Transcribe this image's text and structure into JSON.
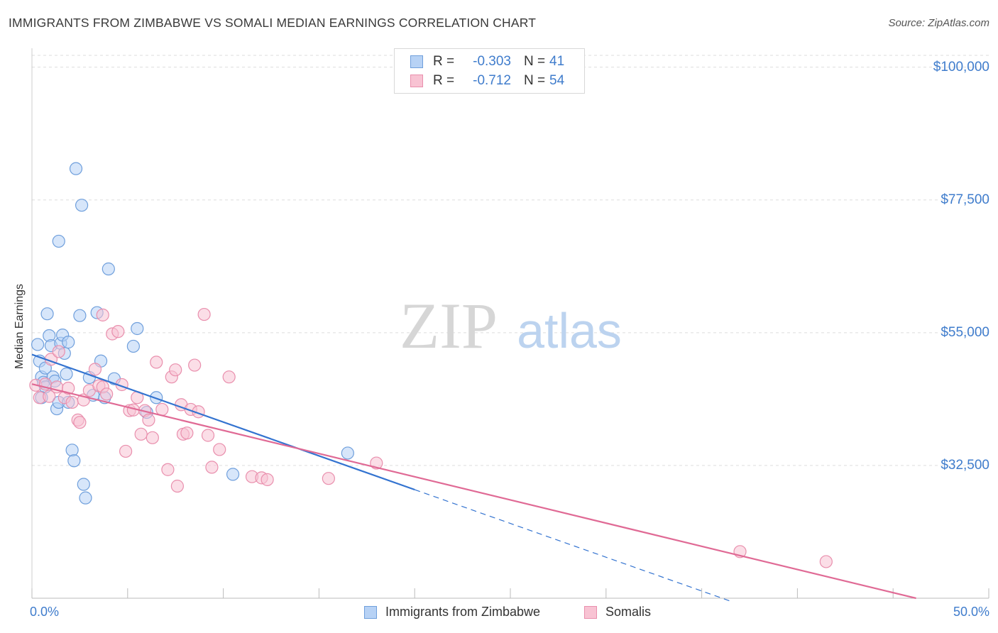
{
  "header": {
    "title": "IMMIGRANTS FROM ZIMBABWE VS SOMALI MEDIAN EARNINGS CORRELATION CHART",
    "source": "Source: ZipAtlas.com"
  },
  "watermark": {
    "zip": "ZIP",
    "atlas": "atlas"
  },
  "legend_top": {
    "rows": [
      {
        "r_label": "R =",
        "r_value": "-0.303",
        "n_label": "N =",
        "n_value": "41"
      },
      {
        "r_label": "R =",
        "r_value": "-0.712",
        "n_label": "N =",
        "n_value": "54"
      }
    ]
  },
  "legend_bottom": {
    "series1": "Immigrants from Zimbabwe",
    "series2": "Somalis"
  },
  "chart_data": {
    "type": "scatter",
    "title": "IMMIGRANTS FROM ZIMBABWE VS SOMALI MEDIAN EARNINGS CORRELATION CHART",
    "xlabel": "",
    "ylabel": "Median Earnings",
    "xlim": [
      0,
      50
    ],
    "ylim": [
      10000,
      102000
    ],
    "x_tick_labels": [
      "0.0%",
      "50.0%"
    ],
    "y_ticks": [
      {
        "value": 32500,
        "label": "$32,500"
      },
      {
        "value": 55000,
        "label": "$55,000"
      },
      {
        "value": 77500,
        "label": "$77,500"
      },
      {
        "value": 100000,
        "label": "$100,000"
      }
    ],
    "colors": {
      "zimbabwe_fill": "#b7d2f5",
      "zimbabwe_stroke": "#6f9fdc",
      "zimbabwe_line": "#3373d0",
      "somali_fill": "#f8c3d3",
      "somali_stroke": "#e98fad",
      "somali_line": "#e06a95",
      "tick_text": "#3f7ccc",
      "grid": "#dddddd"
    },
    "series": [
      {
        "name": "Immigrants from Zimbabwe",
        "r": -0.303,
        "n": 41,
        "trend": {
          "x0": 0,
          "y0": 51300,
          "x1": 20,
          "y1": 28400,
          "dash_to_x": 36.5
        },
        "points": [
          [
            0.3,
            53.0
          ],
          [
            0.4,
            50.2
          ],
          [
            0.5,
            47.5
          ],
          [
            0.6,
            46.6
          ],
          [
            0.7,
            45.8
          ],
          [
            0.5,
            44.0
          ],
          [
            0.7,
            49.0
          ],
          [
            0.8,
            58.2
          ],
          [
            0.9,
            54.5
          ],
          [
            1.0,
            52.8
          ],
          [
            1.1,
            47.5
          ],
          [
            1.2,
            46.8
          ],
          [
            1.3,
            42.1
          ],
          [
            1.4,
            43.2
          ],
          [
            1.5,
            53.2
          ],
          [
            1.6,
            54.6
          ],
          [
            1.7,
            51.5
          ],
          [
            1.8,
            48.0
          ],
          [
            1.9,
            53.4
          ],
          [
            1.9,
            43.2
          ],
          [
            2.1,
            35.1
          ],
          [
            2.2,
            33.3
          ],
          [
            2.3,
            82.8
          ],
          [
            2.5,
            57.9
          ],
          [
            2.6,
            76.6
          ],
          [
            2.7,
            29.3
          ],
          [
            2.8,
            27.0
          ],
          [
            3.0,
            47.4
          ],
          [
            3.2,
            44.4
          ],
          [
            3.4,
            58.4
          ],
          [
            3.6,
            50.2
          ],
          [
            3.8,
            44.0
          ],
          [
            4.0,
            65.8
          ],
          [
            1.4,
            70.5
          ],
          [
            4.3,
            47.2
          ],
          [
            5.3,
            52.7
          ],
          [
            5.5,
            55.7
          ],
          [
            6.0,
            41.5
          ],
          [
            6.5,
            44.0
          ],
          [
            10.5,
            31.0
          ],
          [
            16.5,
            34.6
          ]
        ]
      },
      {
        "name": "Somalis",
        "r": -0.712,
        "n": 54,
        "trend": {
          "x0": 0,
          "y0": 46300,
          "x1": 46.2,
          "y1": 10000
        },
        "points": [
          [
            0.2,
            46.1
          ],
          [
            0.4,
            44.0
          ],
          [
            0.7,
            46.3
          ],
          [
            0.9,
            44.2
          ],
          [
            1.0,
            50.5
          ],
          [
            1.3,
            45.8
          ],
          [
            1.4,
            51.8
          ],
          [
            1.7,
            44.0
          ],
          [
            1.9,
            45.6
          ],
          [
            2.1,
            43.2
          ],
          [
            2.4,
            40.2
          ],
          [
            2.5,
            39.8
          ],
          [
            2.7,
            43.6
          ],
          [
            3.0,
            45.2
          ],
          [
            3.3,
            48.8
          ],
          [
            3.5,
            46.0
          ],
          [
            3.7,
            45.8
          ],
          [
            3.7,
            58.0
          ],
          [
            3.9,
            44.6
          ],
          [
            4.2,
            54.8
          ],
          [
            4.5,
            55.2
          ],
          [
            4.7,
            46.2
          ],
          [
            4.9,
            34.9
          ],
          [
            5.1,
            41.8
          ],
          [
            5.3,
            41.9
          ],
          [
            5.5,
            44.0
          ],
          [
            5.7,
            37.8
          ],
          [
            5.9,
            41.8
          ],
          [
            6.1,
            40.2
          ],
          [
            6.3,
            37.2
          ],
          [
            6.5,
            50.0
          ],
          [
            6.8,
            42.0
          ],
          [
            7.1,
            31.8
          ],
          [
            7.3,
            47.5
          ],
          [
            7.5,
            48.7
          ],
          [
            7.6,
            29.0
          ],
          [
            7.8,
            42.8
          ],
          [
            7.9,
            37.8
          ],
          [
            8.1,
            38.0
          ],
          [
            8.3,
            42.0
          ],
          [
            8.5,
            49.5
          ],
          [
            8.7,
            41.6
          ],
          [
            9.0,
            58.1
          ],
          [
            9.2,
            37.6
          ],
          [
            9.4,
            32.2
          ],
          [
            9.8,
            35.2
          ],
          [
            10.3,
            47.5
          ],
          [
            11.5,
            30.6
          ],
          [
            12.0,
            30.4
          ],
          [
            12.3,
            30.1
          ],
          [
            15.5,
            30.3
          ],
          [
            18.0,
            32.9
          ],
          [
            37.0,
            17.9
          ],
          [
            41.5,
            16.2
          ]
        ]
      }
    ]
  }
}
